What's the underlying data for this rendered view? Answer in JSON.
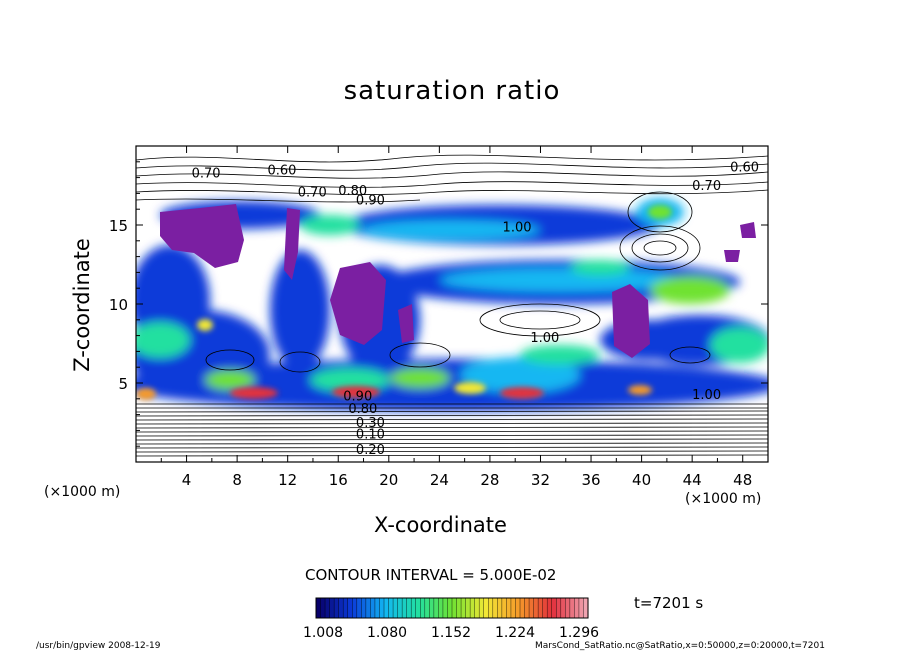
{
  "chart_data": {
    "type": "heatmap",
    "title": "saturation ratio",
    "xlabel": "X-coordinate",
    "ylabel": "Z-coordinate",
    "x_unit_label": "(×1000 m)",
    "x_unit_label_right": "(×1000 m)",
    "xlim": [
      0,
      50
    ],
    "ylim": [
      0,
      20
    ],
    "x_ticks": [
      4,
      8,
      12,
      16,
      20,
      24,
      28,
      32,
      36,
      40,
      44,
      48
    ],
    "y_ticks": [
      5,
      10,
      15
    ],
    "contour_interval_label": "CONTOUR INTERVAL = 5.000E-02",
    "time_label": "t=7201 s",
    "colorbar": {
      "ticks": [
        "1.008",
        "1.080",
        "1.152",
        "1.224",
        "1.296"
      ],
      "colors": [
        "#08006a",
        "#0b3ad9",
        "#12b7f2",
        "#22e0a0",
        "#6fe233",
        "#f2e836",
        "#f59a2a",
        "#e2303c",
        "#f0a3b0"
      ]
    },
    "contour_labels": [
      "0.70",
      "0.60",
      "0.70",
      "0.60",
      "0.80",
      "0.90",
      "0.70",
      "1.00",
      "1.00",
      "1.00",
      "0.90",
      "0.80",
      "0.30",
      "0.10",
      "0.20"
    ],
    "footer_left": "/usr/bin/gpview   2008-12-19",
    "footer_right": "MarsCond_SatRatio.nc@SatRatio,x=0:50000,z=0:20000,t=7201",
    "fill_colors": {
      "supersaturated_max": "#7b1fa2",
      "subsaturated": "#ffffff"
    }
  }
}
